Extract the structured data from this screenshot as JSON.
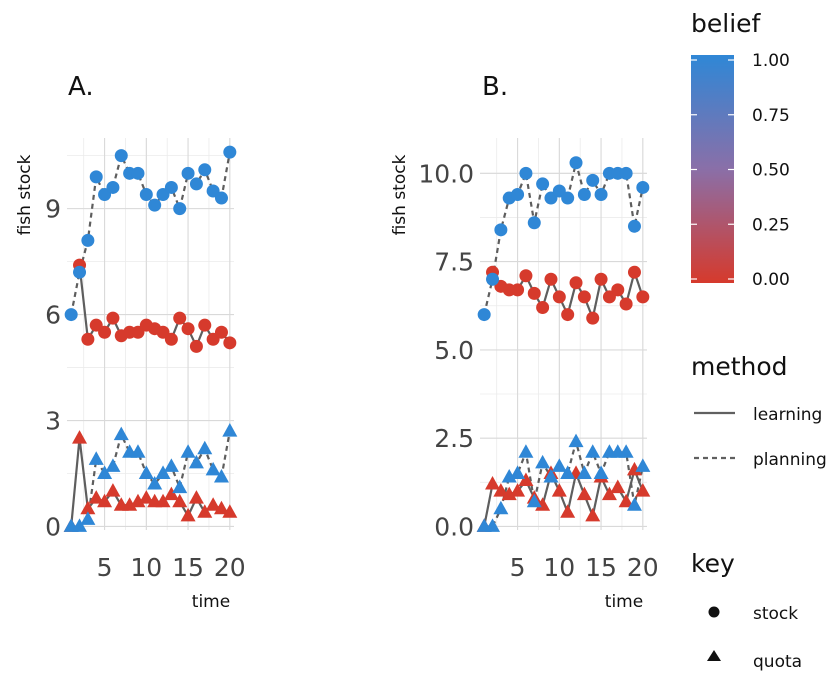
{
  "legend": {
    "belief": {
      "title": "belief",
      "ticks": [
        "1.00",
        "0.75",
        "0.50",
        "0.25",
        "0.00"
      ],
      "color_high": "#2f87d6",
      "color_mid": "#8a6fa8",
      "color_low": "#d63a2c"
    },
    "method": {
      "title": "method",
      "items": [
        {
          "label": "learning",
          "linetype": "solid"
        },
        {
          "label": "planning",
          "linetype": "dashed"
        }
      ]
    },
    "key": {
      "title": "key",
      "items": [
        {
          "label": "stock",
          "shape": "circle"
        },
        {
          "label": "quota",
          "shape": "triangle"
        }
      ]
    }
  },
  "chart_data": [
    {
      "type": "scatter",
      "title": "A.",
      "xlabel": "time",
      "ylabel": "fish stock",
      "xlim": [
        0.5,
        20.5
      ],
      "ylim": [
        -0.1,
        11.0
      ],
      "xticks": [
        "5",
        "10",
        "15",
        "20"
      ],
      "yticks": [
        "0",
        "3",
        "6",
        "9"
      ],
      "grid": true,
      "series": [
        {
          "name": "stock",
          "method": "learning",
          "belief": 0.0,
          "shape": "circle",
          "x": [
            2,
            3,
            4,
            5,
            6,
            7,
            8,
            9,
            10,
            11,
            12,
            13,
            14,
            15,
            16,
            17,
            18,
            19,
            20
          ],
          "y": [
            7.4,
            5.3,
            5.7,
            5.5,
            5.9,
            5.4,
            5.5,
            5.5,
            5.7,
            5.6,
            5.5,
            5.3,
            5.9,
            5.6,
            5.1,
            5.7,
            5.3,
            5.5,
            5.2
          ]
        },
        {
          "name": "stock",
          "method": "planning",
          "belief": 1.0,
          "shape": "circle",
          "x": [
            1,
            2,
            3,
            4,
            5,
            6,
            7,
            8,
            9,
            10,
            11,
            12,
            13,
            14,
            15,
            16,
            17,
            18,
            19,
            20
          ],
          "y": [
            6.0,
            7.2,
            8.1,
            9.9,
            9.4,
            9.6,
            10.5,
            10.0,
            10.0,
            9.4,
            9.1,
            9.4,
            9.6,
            9.0,
            10.0,
            9.7,
            10.1,
            9.5,
            9.3,
            10.6
          ]
        },
        {
          "name": "quota",
          "method": "learning",
          "belief": 0.0,
          "shape": "triangle",
          "x": [
            1,
            2,
            3,
            4,
            5,
            6,
            7,
            8,
            9,
            10,
            11,
            12,
            13,
            14,
            15,
            16,
            17,
            18,
            19,
            20
          ],
          "y": [
            0.0,
            2.5,
            0.5,
            0.8,
            0.7,
            1.0,
            0.6,
            0.6,
            0.7,
            0.8,
            0.7,
            0.7,
            0.9,
            0.7,
            0.3,
            0.8,
            0.4,
            0.6,
            0.5,
            0.4
          ]
        },
        {
          "name": "quota",
          "method": "planning",
          "belief": 1.0,
          "shape": "triangle",
          "x": [
            1,
            2,
            3,
            4,
            5,
            6,
            7,
            8,
            9,
            10,
            11,
            12,
            13,
            14,
            15,
            16,
            17,
            18,
            19,
            20
          ],
          "y": [
            0.0,
            0.0,
            0.2,
            1.9,
            1.5,
            1.7,
            2.6,
            2.1,
            2.1,
            1.5,
            1.2,
            1.5,
            1.7,
            1.1,
            2.1,
            1.8,
            2.2,
            1.6,
            1.4,
            2.7
          ]
        }
      ]
    },
    {
      "type": "scatter",
      "title": "B.",
      "xlabel": "time",
      "ylabel": "fish stock",
      "xlim": [
        0.5,
        20.5
      ],
      "ylim": [
        -0.1,
        11.0
      ],
      "xticks": [
        "5",
        "10",
        "15",
        "20"
      ],
      "yticks": [
        "0.0",
        "2.5",
        "5.0",
        "7.5",
        "10.0"
      ],
      "grid": true,
      "series": [
        {
          "name": "stock",
          "method": "learning",
          "belief": 0.0,
          "shape": "circle",
          "x": [
            2,
            3,
            4,
            5,
            6,
            7,
            8,
            9,
            10,
            11,
            12,
            13,
            14,
            15,
            16,
            17,
            18,
            19,
            20
          ],
          "y": [
            7.2,
            6.8,
            6.7,
            6.7,
            7.1,
            6.6,
            6.2,
            7.0,
            6.5,
            6.0,
            6.9,
            6.5,
            5.9,
            7.0,
            6.5,
            6.7,
            6.3,
            7.2,
            6.5
          ]
        },
        {
          "name": "stock",
          "method": "planning",
          "belief": 1.0,
          "shape": "circle",
          "x": [
            1,
            2,
            3,
            4,
            5,
            6,
            7,
            8,
            9,
            10,
            11,
            12,
            13,
            14,
            15,
            16,
            17,
            18,
            19,
            20
          ],
          "y": [
            6.0,
            7.0,
            8.4,
            9.3,
            9.4,
            10.0,
            8.6,
            9.7,
            9.3,
            9.5,
            9.3,
            10.3,
            9.4,
            9.8,
            9.4,
            10.0,
            10.0,
            10.0,
            8.5,
            9.6
          ]
        },
        {
          "name": "quota",
          "method": "learning",
          "belief": 0.0,
          "shape": "triangle",
          "x": [
            1,
            2,
            3,
            4,
            5,
            6,
            7,
            8,
            9,
            10,
            11,
            12,
            13,
            14,
            15,
            16,
            17,
            18,
            19,
            20
          ],
          "y": [
            0.0,
            1.2,
            1.0,
            0.9,
            1.0,
            1.3,
            0.8,
            0.6,
            1.5,
            1.0,
            0.4,
            1.5,
            0.9,
            0.3,
            1.4,
            0.9,
            1.1,
            0.7,
            1.6,
            1.0
          ]
        },
        {
          "name": "quota",
          "method": "planning",
          "belief": 1.0,
          "shape": "triangle",
          "x": [
            1,
            2,
            3,
            4,
            5,
            6,
            7,
            8,
            9,
            10,
            11,
            12,
            13,
            14,
            15,
            16,
            17,
            18,
            19,
            20
          ],
          "y": [
            0.0,
            0.0,
            0.5,
            1.4,
            1.5,
            2.1,
            0.7,
            1.8,
            1.4,
            1.7,
            1.5,
            2.4,
            1.5,
            2.1,
            1.5,
            2.1,
            2.1,
            2.1,
            0.6,
            1.7
          ]
        }
      ]
    }
  ]
}
